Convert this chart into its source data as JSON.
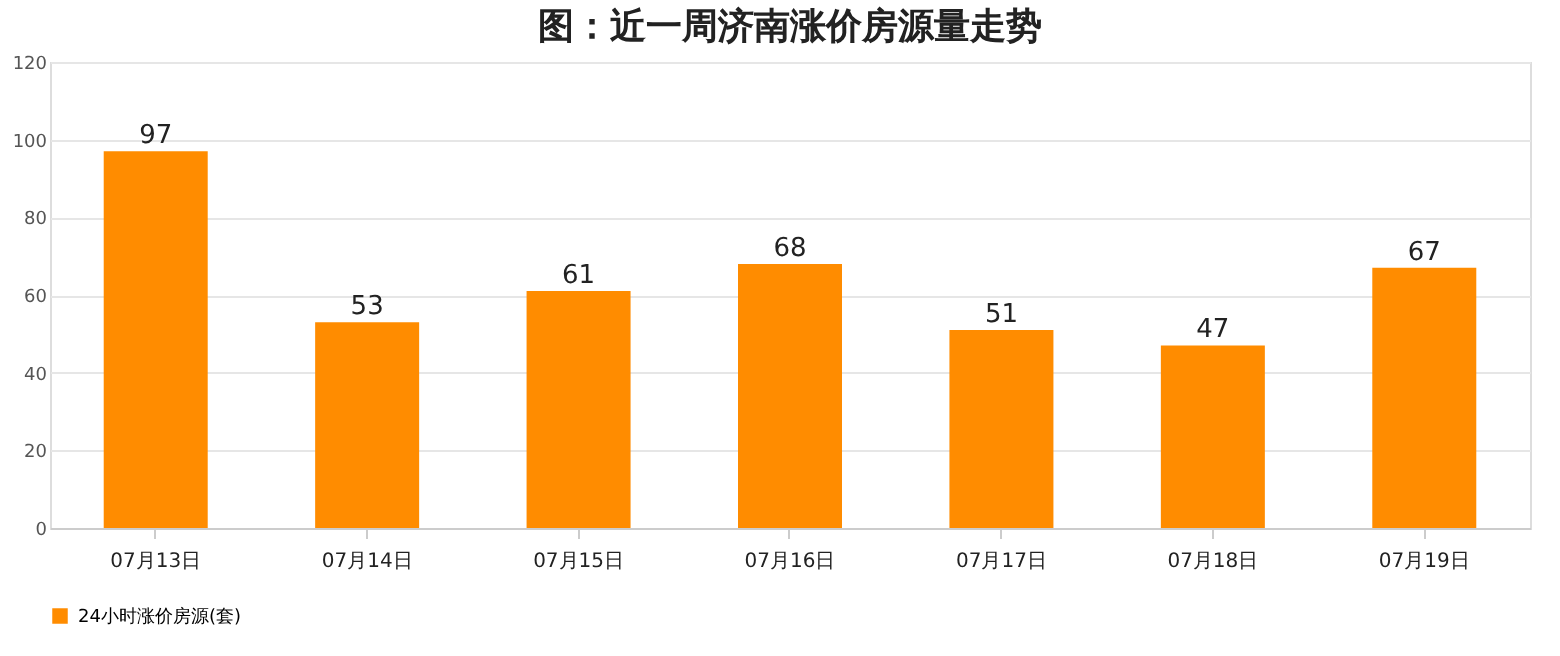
{
  "chart_data": {
    "type": "bar",
    "title": "图：近一周济南涨价房源量走势",
    "categories": [
      "07月13日",
      "07月14日",
      "07月15日",
      "07月16日",
      "07月17日",
      "07月18日",
      "07月19日"
    ],
    "series": [
      {
        "name": "24小时涨价房源(套)",
        "color": "#ff8c00",
        "values": [
          97,
          53,
          61,
          68,
          51,
          47,
          67
        ]
      }
    ],
    "ylim": [
      0,
      120
    ],
    "yticks": [
      0,
      20,
      40,
      60,
      80,
      100,
      120
    ],
    "grid": "y",
    "legend": "bottom",
    "data_labels": true
  }
}
